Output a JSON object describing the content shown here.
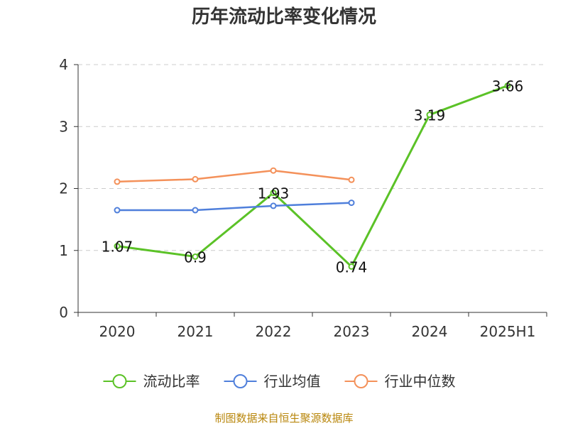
{
  "chart_data": {
    "type": "line",
    "title": "历年流动比率变化情况",
    "categories": [
      "2020",
      "2021",
      "2022",
      "2023",
      "2024",
      "2025H1"
    ],
    "ylim": [
      0,
      4
    ],
    "yticks": [
      0,
      1,
      2,
      3,
      4
    ],
    "grid": true,
    "legend_position": "bottom",
    "series": [
      {
        "name": "流动比率",
        "color": "#5bc227",
        "values": [
          1.07,
          0.9,
          1.93,
          0.74,
          3.19,
          3.66
        ],
        "labels": [
          "1.07",
          "0.9",
          "1.93",
          "0.74",
          "3.19",
          "3.66"
        ]
      },
      {
        "name": "行业均值",
        "color": "#4f7fdb",
        "values": [
          1.65,
          1.65,
          1.72,
          1.77,
          null,
          null
        ]
      },
      {
        "name": "行业中位数",
        "color": "#f4915a",
        "values": [
          2.11,
          2.15,
          2.29,
          2.14,
          null,
          null
        ]
      }
    ]
  },
  "footer": {
    "source": "制图数据来自恒生聚源数据库"
  }
}
